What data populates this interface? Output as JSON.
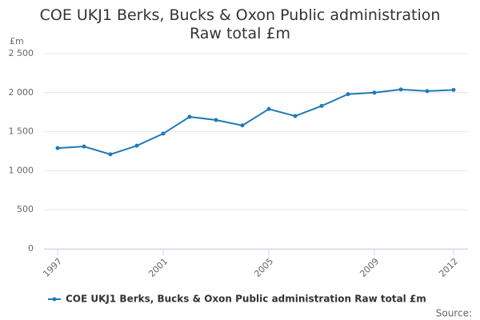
{
  "chart_data": {
    "type": "line",
    "title": "COE UKJ1 Berks, Bucks & Oxon Public administration Raw total £m",
    "y_label": "£m",
    "source": "Source:",
    "x": [
      1997,
      1998,
      1999,
      2000,
      2001,
      2002,
      2003,
      2004,
      2005,
      2006,
      2007,
      2008,
      2009,
      2010,
      2011,
      2012
    ],
    "series": [
      {
        "name": "COE UKJ1 Berks, Bucks & Oxon Public administration Raw total £m",
        "color": "#1f7ab8",
        "values": [
          1290,
          1310,
          1210,
          1320,
          1475,
          1690,
          1650,
          1580,
          1790,
          1700,
          1830,
          1980,
          2000,
          2040,
          2020,
          2035
        ]
      }
    ],
    "xlim": [
      1997,
      2012
    ],
    "xticks": [
      1997,
      2001,
      2005,
      2009,
      2012
    ],
    "ylim": [
      0,
      2500
    ],
    "yticks": [
      0,
      500,
      {
        "value": 1000,
        "label": "1 000"
      },
      {
        "value": 1500,
        "label": "1 500"
      },
      {
        "value": 2000,
        "label": "2 000"
      },
      {
        "value": 2500,
        "label": "2 500"
      }
    ],
    "grid": true
  }
}
